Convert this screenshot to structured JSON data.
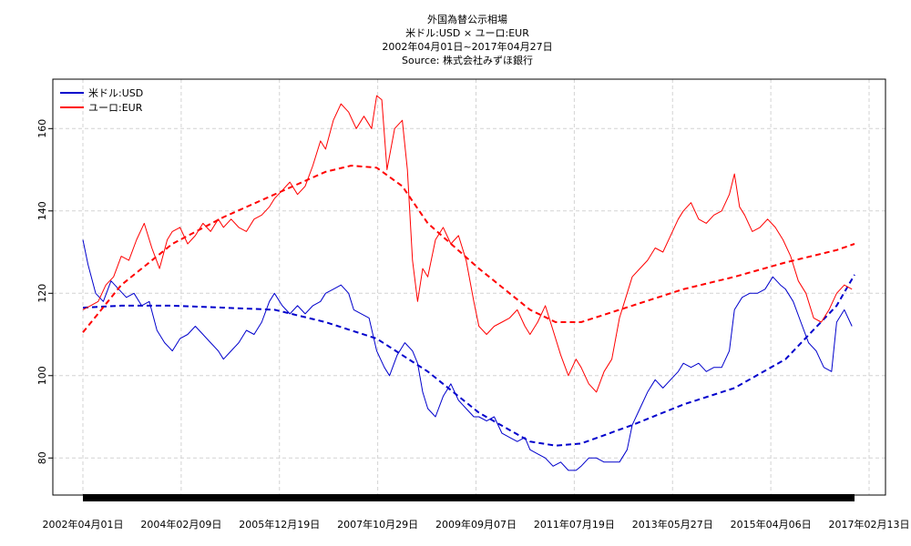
{
  "chart_data": {
    "type": "line",
    "title": "外国為替公示相場",
    "subtitle": "米ドル:USD × ユーロ:EUR",
    "period": "2002年04月01日~2017年04月27日",
    "source": "Source: 株式会社みずほ銀行",
    "xlabel": "",
    "ylabel": "",
    "x_tick_labels": [
      "2002年04月01日",
      "2004年02月09日",
      "2005年12月19日",
      "2007年10月29日",
      "2009年09月07日",
      "2011年07月19日",
      "2013年05月27日",
      "2015年04月06日",
      "2017年02月13日"
    ],
    "y_ticks": [
      80,
      100,
      120,
      140,
      160
    ],
    "ylim": [
      71,
      172
    ],
    "xlim": [
      2002.0,
      2017.6
    ],
    "grid": true,
    "legend_position": "top-left",
    "series": [
      {
        "name": "米ドル:USD",
        "color": "#0000cc",
        "style": "solid",
        "x": [
          2002.25,
          2002.35,
          2002.5,
          2002.65,
          2002.8,
          2002.95,
          2003.1,
          2003.25,
          2003.4,
          2003.55,
          2003.7,
          2003.85,
          2004.0,
          2004.15,
          2004.3,
          2004.45,
          2004.6,
          2004.75,
          2004.9,
          2005.0,
          2005.15,
          2005.3,
          2005.45,
          2005.6,
          2005.75,
          2005.9,
          2006.0,
          2006.15,
          2006.3,
          2006.45,
          2006.6,
          2006.75,
          2006.9,
          2007.0,
          2007.15,
          2007.3,
          2007.45,
          2007.55,
          2007.7,
          2007.85,
          2008.0,
          2008.15,
          2008.25,
          2008.4,
          2008.55,
          2008.7,
          2008.8,
          2008.9,
          2009.0,
          2009.15,
          2009.3,
          2009.45,
          2009.6,
          2009.75,
          2009.9,
          2010.0,
          2010.15,
          2010.3,
          2010.45,
          2010.6,
          2010.75,
          2010.9,
          2011.0,
          2011.15,
          2011.3,
          2011.45,
          2011.6,
          2011.75,
          2011.9,
          2012.0,
          2012.15,
          2012.3,
          2012.45,
          2012.6,
          2012.75,
          2012.9,
          2013.0,
          2013.15,
          2013.3,
          2013.45,
          2013.6,
          2013.75,
          2013.9,
          2014.0,
          2014.15,
          2014.3,
          2014.45,
          2014.6,
          2014.75,
          2014.9,
          2015.0,
          2015.15,
          2015.3,
          2015.45,
          2015.6,
          2015.75,
          2015.9,
          2016.0,
          2016.15,
          2016.3,
          2016.45,
          2016.6,
          2016.75,
          2016.9,
          2017.0,
          2017.15,
          2017.3
        ],
        "values": [
          133,
          127,
          120,
          118,
          123,
          121,
          119,
          120,
          117,
          118,
          111,
          108,
          106,
          109,
          110,
          112,
          110,
          108,
          106,
          104,
          106,
          108,
          111,
          110,
          113,
          118,
          120,
          117,
          115,
          117,
          115,
          117,
          118,
          120,
          121,
          122,
          120,
          116,
          115,
          114,
          106,
          102,
          100,
          105,
          108,
          106,
          103,
          96,
          92,
          90,
          95,
          98,
          94,
          92,
          90,
          90,
          89,
          90,
          86,
          85,
          84,
          85,
          82,
          81,
          80,
          78,
          79,
          77,
          77,
          78,
          80,
          80,
          79,
          79,
          79,
          82,
          88,
          92,
          96,
          99,
          97,
          99,
          101,
          103,
          102,
          103,
          101,
          102,
          102,
          106,
          116,
          119,
          120,
          120,
          121,
          124,
          122,
          121,
          118,
          113,
          108,
          106,
          102,
          101,
          113,
          116,
          112
        ],
        "trend_x": [
          2002.25,
          2003.0,
          2004.0,
          2005.0,
          2006.0,
          2007.0,
          2008.0,
          2009.0,
          2010.0,
          2011.0,
          2011.5,
          2012.0,
          2013.0,
          2014.0,
          2015.0,
          2016.0,
          2017.0,
          2017.35
        ],
        "trend_values": [
          116.5,
          117,
          117,
          116.5,
          116,
          113,
          109,
          101,
          91,
          84,
          83,
          83.5,
          88,
          93,
          97,
          104,
          117,
          124.5
        ]
      },
      {
        "name": "ユーロ:EUR",
        "color": "#ff0000",
        "style": "solid",
        "x": [
          2002.25,
          2002.4,
          2002.55,
          2002.7,
          2002.85,
          2003.0,
          2003.15,
          2003.3,
          2003.45,
          2003.6,
          2003.75,
          2003.9,
          2004.0,
          2004.15,
          2004.3,
          2004.45,
          2004.6,
          2004.75,
          2004.9,
          2005.0,
          2005.15,
          2005.3,
          2005.45,
          2005.6,
          2005.75,
          2005.9,
          2006.0,
          2006.15,
          2006.3,
          2006.45,
          2006.6,
          2006.75,
          2006.9,
          2007.0,
          2007.15,
          2007.3,
          2007.45,
          2007.6,
          2007.75,
          2007.9,
          2008.0,
          2008.1,
          2008.2,
          2008.35,
          2008.5,
          2008.6,
          2008.7,
          2008.8,
          2008.9,
          2009.0,
          2009.15,
          2009.3,
          2009.45,
          2009.6,
          2009.75,
          2009.9,
          2010.0,
          2010.15,
          2010.3,
          2010.45,
          2010.6,
          2010.75,
          2010.9,
          2011.0,
          2011.15,
          2011.3,
          2011.45,
          2011.6,
          2011.75,
          2011.9,
          2012.0,
          2012.15,
          2012.3,
          2012.45,
          2012.6,
          2012.75,
          2012.9,
          2013.0,
          2013.15,
          2013.3,
          2013.45,
          2013.6,
          2013.75,
          2013.9,
          2014.0,
          2014.15,
          2014.3,
          2014.45,
          2014.6,
          2014.75,
          2014.9,
          2015.0,
          2015.1,
          2015.2,
          2015.35,
          2015.5,
          2015.65,
          2015.8,
          2015.95,
          2016.1,
          2016.25,
          2016.4,
          2016.55,
          2016.7,
          2016.85,
          2017.0,
          2017.15,
          2017.3
        ],
        "values": [
          116,
          117,
          118,
          122,
          124,
          129,
          128,
          133,
          137,
          131,
          126,
          133,
          135,
          136,
          132,
          134,
          137,
          135,
          138,
          136,
          138,
          136,
          135,
          138,
          139,
          141,
          143,
          145,
          147,
          144,
          146,
          151,
          157,
          155,
          162,
          166,
          164,
          160,
          163,
          160,
          168,
          167,
          150,
          160,
          162,
          150,
          128,
          118,
          126,
          124,
          133,
          136,
          132,
          134,
          128,
          118,
          112,
          110,
          112,
          113,
          114,
          116,
          112,
          110,
          113,
          117,
          111,
          105,
          100,
          104,
          102,
          98,
          96,
          101,
          104,
          114,
          120,
          124,
          126,
          128,
          131,
          130,
          134,
          138,
          140,
          142,
          138,
          137,
          139,
          140,
          144,
          149,
          141,
          139,
          135,
          136,
          138,
          136,
          133,
          129,
          123,
          120,
          114,
          113,
          116,
          120,
          122,
          121
        ],
        "trend_x": [
          2002.25,
          2003.0,
          2004.0,
          2005.0,
          2006.0,
          2007.0,
          2007.5,
          2008.0,
          2008.5,
          2009.0,
          2010.0,
          2011.0,
          2011.5,
          2012.0,
          2013.0,
          2014.0,
          2015.0,
          2016.0,
          2017.0,
          2017.35
        ],
        "trend_values": [
          110.5,
          122,
          132,
          138.5,
          144,
          149.5,
          151,
          150.5,
          146,
          137,
          126,
          116,
          113,
          113,
          117,
          121,
          124,
          127.5,
          130.5,
          132
        ]
      }
    ]
  }
}
